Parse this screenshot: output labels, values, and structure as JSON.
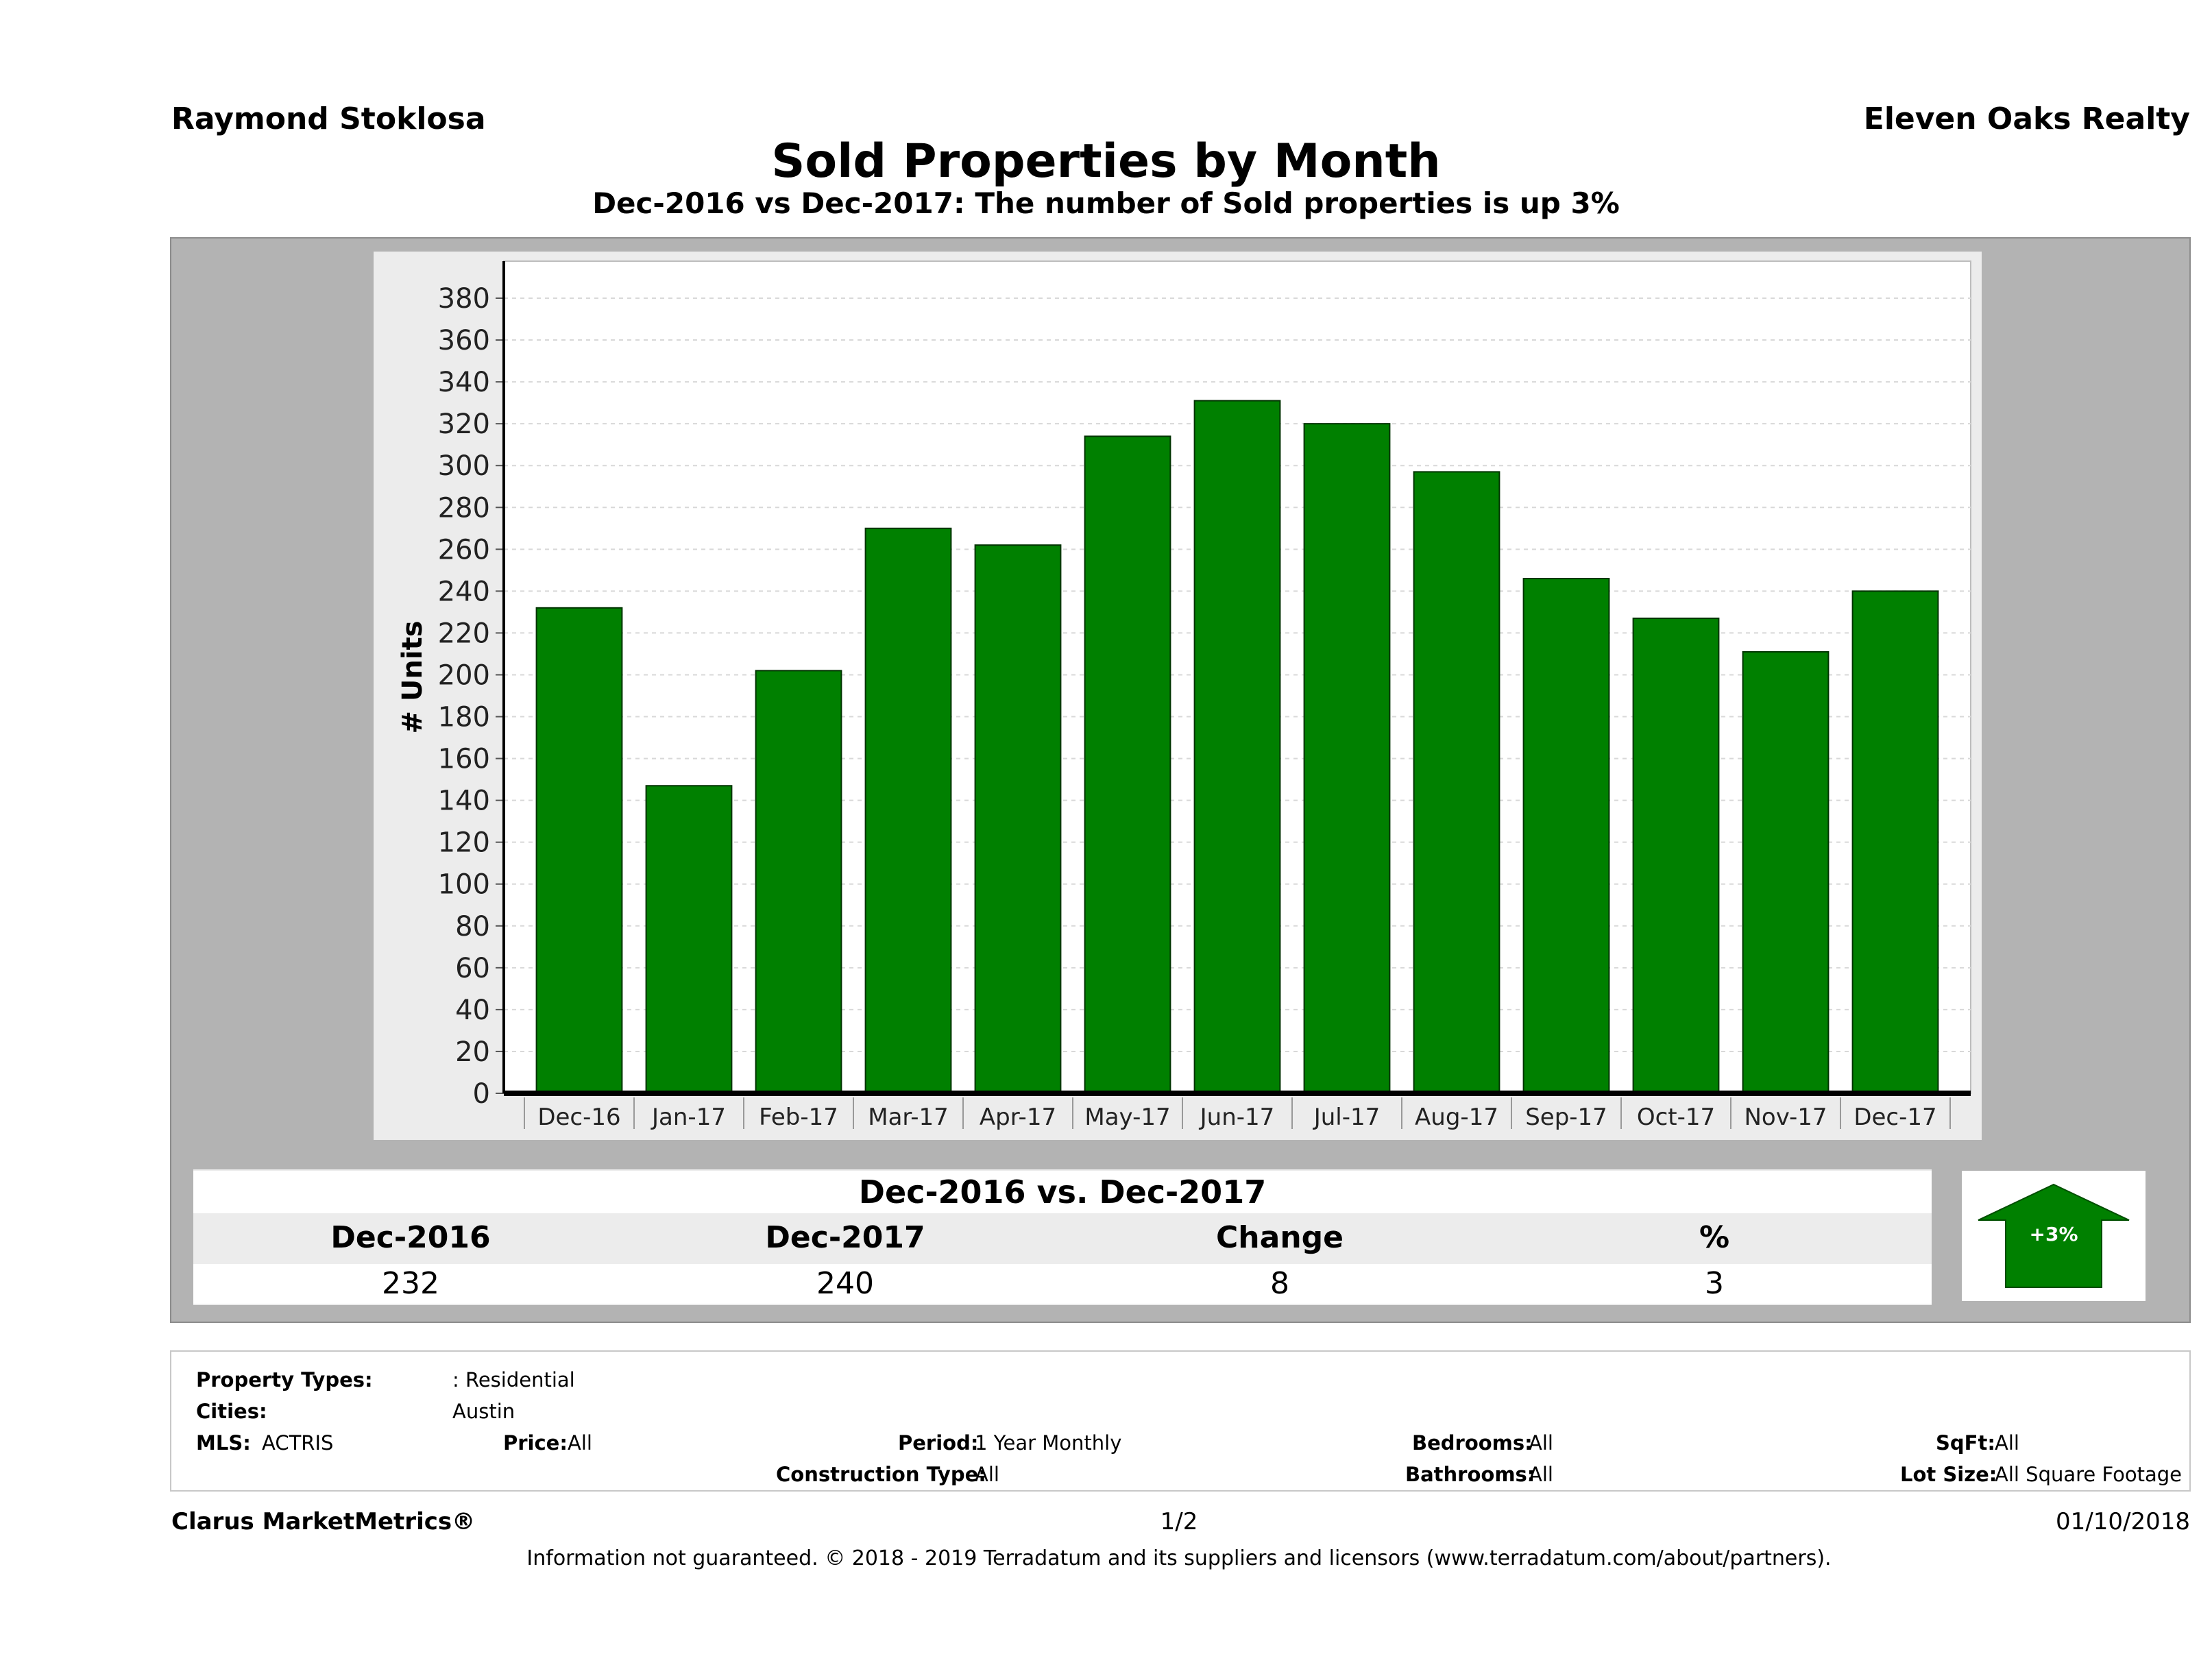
{
  "header": {
    "agent": "Raymond Stoklosa",
    "company": "Eleven Oaks Realty",
    "title": "Sold Properties by Month",
    "subtitle": "Dec-2016 vs Dec-2017: The number of Sold  properties is up 3%"
  },
  "chart_data": {
    "type": "bar",
    "categories": [
      "Dec-16",
      "Jan-17",
      "Feb-17",
      "Mar-17",
      "Apr-17",
      "May-17",
      "Jun-17",
      "Jul-17",
      "Aug-17",
      "Sep-17",
      "Oct-17",
      "Nov-17",
      "Dec-17"
    ],
    "values": [
      232,
      147,
      202,
      270,
      262,
      314,
      331,
      320,
      297,
      246,
      227,
      211,
      240
    ],
    "ylabel": "# Units",
    "xlabel": "",
    "ylim": [
      0,
      380
    ],
    "yticks": [
      0,
      20,
      40,
      60,
      80,
      100,
      120,
      140,
      160,
      180,
      200,
      220,
      240,
      260,
      280,
      300,
      320,
      340,
      360,
      380
    ],
    "grid": true,
    "colors": {
      "bar": "#008000",
      "bar_edge": "#003300",
      "plot_bg": "#ffffff",
      "frame_bg": "#ececec",
      "grid": "#d8d8d8"
    }
  },
  "comparison": {
    "title": "Dec-2016 vs. Dec-2017",
    "headers": [
      "Dec-2016",
      "Dec-2017",
      "Change",
      "%"
    ],
    "values": [
      "232",
      "240",
      "8",
      "3"
    ],
    "badge": "+3%",
    "badge_icon": "up-arrow-icon",
    "badge_color": "#008000"
  },
  "filters": {
    "property_types_label": "Property Types:",
    "property_types_value": ": Residential",
    "cities_label": "Cities:",
    "cities_value": "Austin",
    "mls_label": "MLS:",
    "mls_value": "ACTRIS",
    "price_label": "Price:",
    "price_value": "All",
    "period_label": "Period:",
    "period_value": "1 Year Monthly",
    "construction_label": "Construction Type:",
    "construction_value": "All",
    "bedrooms_label": "Bedrooms:",
    "bedrooms_value": "All",
    "bathrooms_label": "Bathrooms:",
    "bathrooms_value": "All",
    "sqft_label": "SqFt:",
    "sqft_value": "All",
    "lotsize_label": "Lot Size:",
    "lotsize_value": "All Square Footage"
  },
  "footer": {
    "brand": "Clarus MarketMetrics®",
    "page": "1/2",
    "date": "01/10/2018",
    "disclaimer": "Information not guaranteed. © 2018 - 2019 Terradatum and its suppliers and licensors (www.terradatum.com/about/partners)."
  }
}
